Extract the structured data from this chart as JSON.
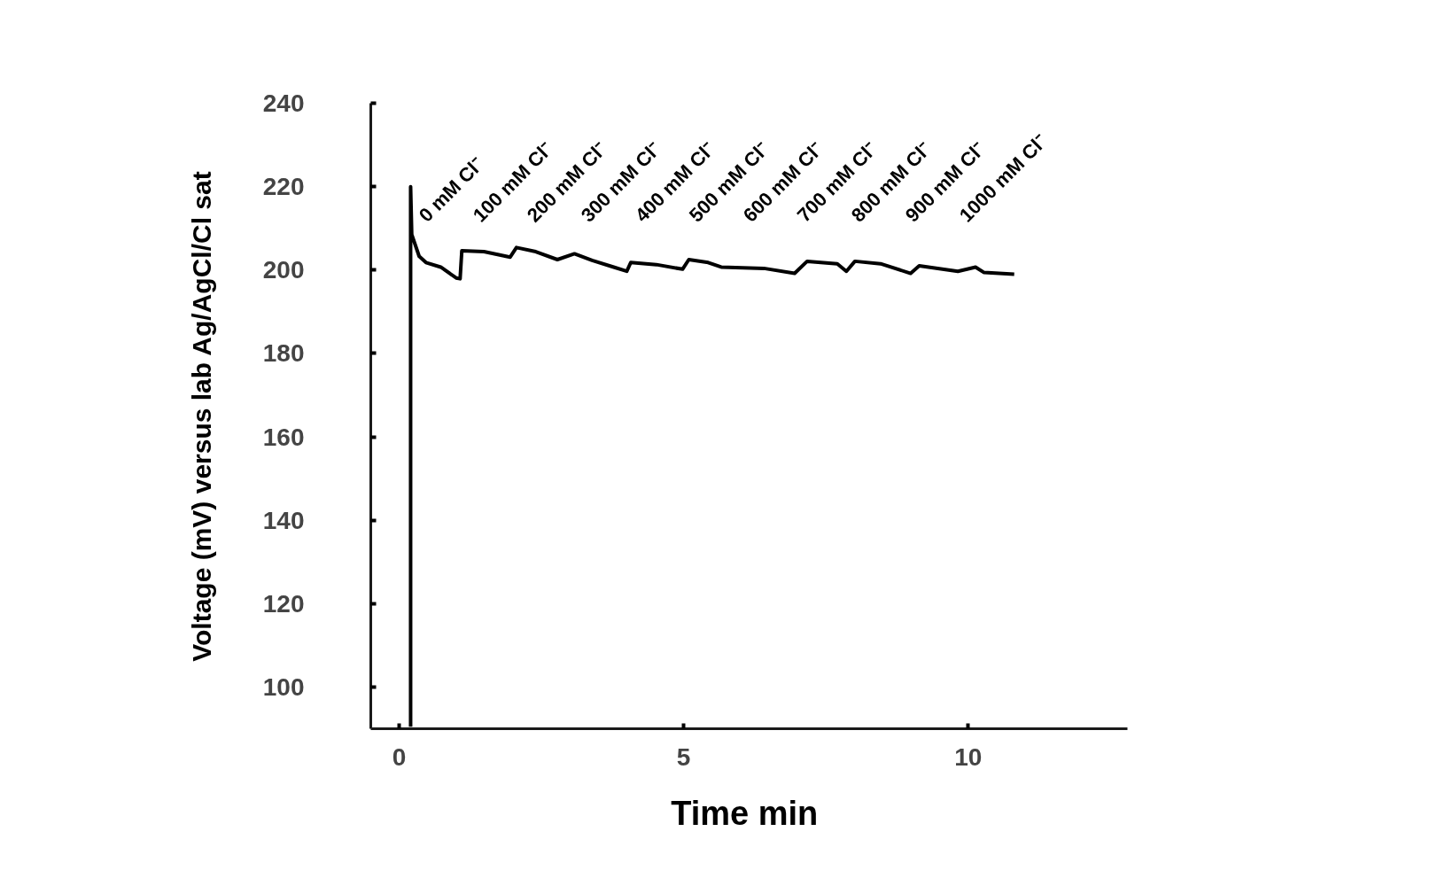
{
  "chart_data": {
    "type": "line",
    "xlabel": "Time  min",
    "ylabel": "Voltage (mV) versus lab Ag/AgCl/Cl sat",
    "x": [
      0.2,
      0.2,
      0.22,
      0.35,
      0.47,
      0.73,
      1.0,
      1.07,
      1.1,
      1.49,
      1.95,
      2.06,
      2.4,
      2.78,
      3.08,
      3.39,
      3.77,
      4.0,
      4.07,
      4.52,
      4.98,
      5.09,
      5.43,
      5.66,
      6.41,
      6.95,
      7.17,
      7.7,
      7.86,
      8.01,
      8.46,
      8.99,
      9.14,
      9.82,
      10.13,
      10.28,
      10.81
    ],
    "series": [
      {
        "color": "#000000",
        "values": [
          90.5,
          220,
          208.5,
          203.3,
          201.8,
          200.7,
          198.1,
          197.9,
          204.6,
          204.4,
          203.1,
          205.4,
          204.4,
          202.5,
          203.9,
          202.3,
          200.7,
          199.7,
          201.8,
          201.3,
          200.2,
          202.5,
          201.8,
          200.7,
          200.4,
          199.2,
          202.1,
          201.5,
          199.7,
          202.1,
          201.5,
          199.2,
          201.0,
          199.7,
          200.7,
          199.4,
          199.0
        ]
      }
    ],
    "xlim": [
      -0.5,
      12.8
    ],
    "xticks": [
      0,
      5,
      10
    ],
    "ylim": [
      90,
      240
    ],
    "yticks": [
      100,
      120,
      140,
      160,
      180,
      200,
      220,
      240
    ],
    "annotations": [
      "0 mM Cl⁻",
      "100 mM Cl⁻",
      "200 mM Cl⁻",
      "300 mM Cl⁻",
      "400 mM Cl⁻",
      "500 mM Cl⁻",
      "600 mM Cl⁻",
      "700 mM Cl⁻",
      "800 mM Cl⁻",
      "900 mM Cl⁻",
      "1000 mM Cl⁻"
    ],
    "grid": false,
    "line_style": "solid",
    "marker": "none"
  }
}
